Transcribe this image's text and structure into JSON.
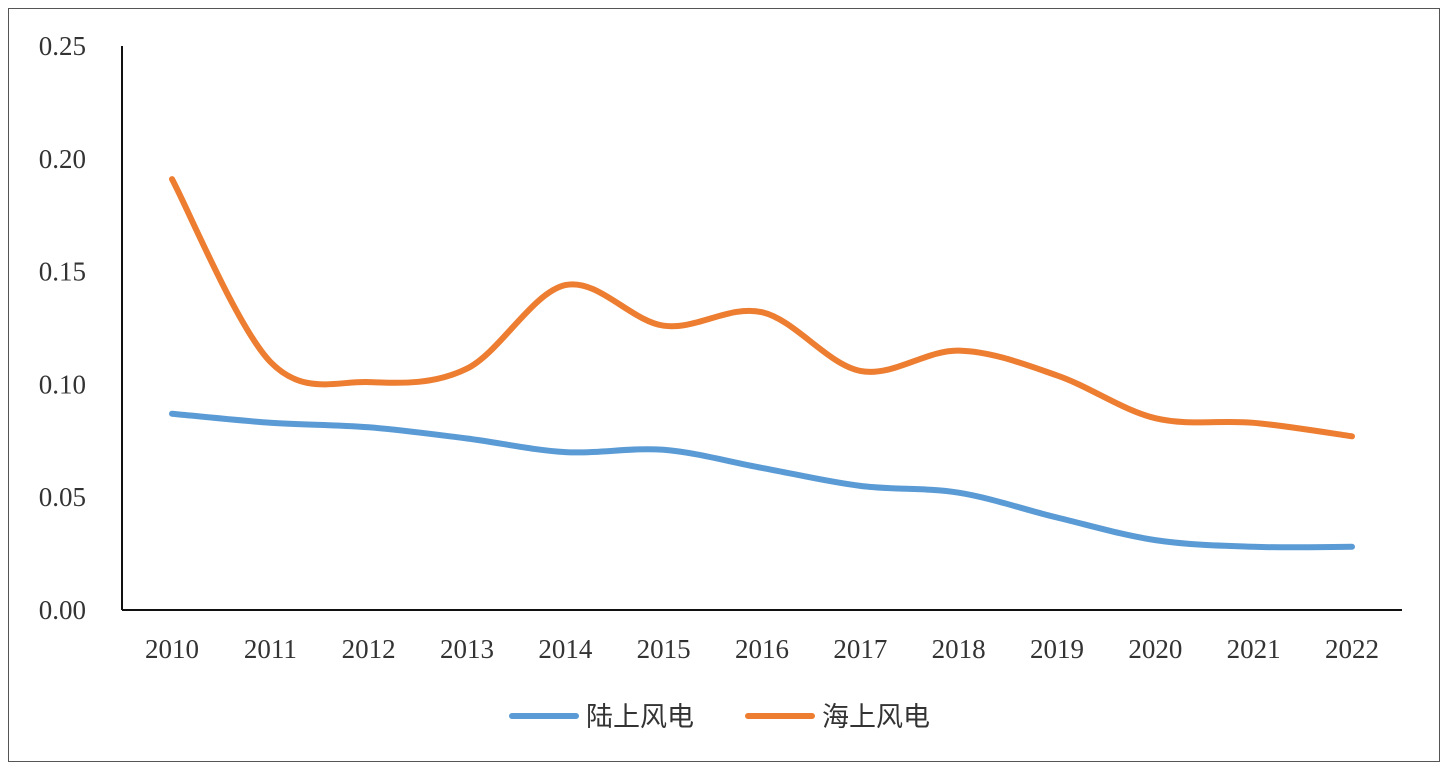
{
  "chart_data": {
    "type": "line",
    "title": "",
    "xlabel": "",
    "ylabel": "",
    "categories": [
      "2010",
      "2011",
      "2012",
      "2013",
      "2014",
      "2015",
      "2016",
      "2017",
      "2018",
      "2019",
      "2020",
      "2021",
      "2022"
    ],
    "ylim": [
      0,
      0.25
    ],
    "yticks": [
      "0.00",
      "0.05",
      "0.10",
      "0.15",
      "0.20",
      "0.25"
    ],
    "grid": false,
    "legend_position": "bottom",
    "smooth": true,
    "series": [
      {
        "name": "陆上风电",
        "color": "#5B9BD5",
        "values": [
          0.087,
          0.083,
          0.081,
          0.076,
          0.07,
          0.071,
          0.063,
          0.055,
          0.052,
          0.041,
          0.031,
          0.028,
          0.028
        ]
      },
      {
        "name": "海上风电",
        "color": "#ED7D31",
        "values": [
          0.191,
          0.11,
          0.101,
          0.107,
          0.144,
          0.126,
          0.132,
          0.106,
          0.115,
          0.104,
          0.085,
          0.083,
          0.077
        ]
      }
    ]
  }
}
